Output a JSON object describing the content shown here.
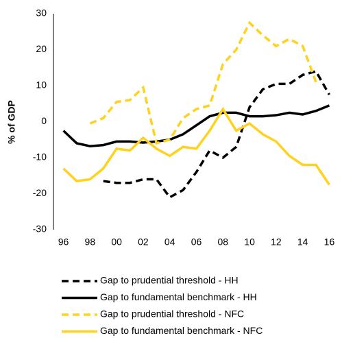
{
  "chart_data": {
    "type": "line",
    "y_label": "% of GDP",
    "x": [
      1996,
      1997,
      1998,
      1999,
      2000,
      2001,
      2002,
      2003,
      2004,
      2005,
      2006,
      2007,
      2008,
      2009,
      2010,
      2011,
      2012,
      2013,
      2014,
      2015,
      2016
    ],
    "xlim": [
      1995.25,
      2016.75
    ],
    "xticks": [
      {
        "value": 1996,
        "label": "96"
      },
      {
        "value": 1998,
        "label": "98"
      },
      {
        "value": 2000,
        "label": "00"
      },
      {
        "value": 2002,
        "label": "02"
      },
      {
        "value": 2004,
        "label": "04"
      },
      {
        "value": 2006,
        "label": "06"
      },
      {
        "value": 2008,
        "label": "08"
      },
      {
        "value": 2010,
        "label": "10"
      },
      {
        "value": 2012,
        "label": "12"
      },
      {
        "value": 2014,
        "label": "14"
      },
      {
        "value": 2016,
        "label": "16"
      }
    ],
    "ylim": [
      -30,
      30
    ],
    "yticks": [
      -30,
      -20,
      -10,
      0,
      10,
      20,
      30
    ],
    "grid": false,
    "series": [
      {
        "name": "Gap to prudential threshold - HH",
        "color": "#000000",
        "dashed": true,
        "values": [
          null,
          null,
          null,
          -16.5,
          -17,
          -17,
          -16,
          -16,
          -21,
          -19,
          -14,
          -8,
          -10,
          -7,
          4,
          9,
          10.5,
          10.5,
          13,
          14,
          7.5
        ]
      },
      {
        "name": "Gap to fundamental benchmark - HH",
        "color": "#000000",
        "dashed": false,
        "values": [
          -2.5,
          -6,
          -6.8,
          -6.5,
          -5.5,
          -5.5,
          -5.8,
          -5.5,
          -5,
          -3.5,
          -1,
          1.5,
          2.5,
          2.5,
          1.5,
          1.5,
          1.8,
          2.5,
          2,
          3,
          4.5
        ]
      },
      {
        "name": "Gap to prudential threshold - NFC",
        "color": "#ffd21f",
        "dashed": true,
        "values": [
          null,
          null,
          -0.5,
          1,
          5.5,
          6,
          9.5,
          -6,
          -5,
          1,
          3.5,
          4.5,
          16,
          20,
          27.5,
          24,
          21,
          23,
          21,
          11,
          null
        ]
      },
      {
        "name": "Gap to fundamental benchmark - NFC",
        "color": "#ffd21f",
        "dashed": false,
        "values": [
          -13,
          -16.5,
          -16,
          -13,
          -7.5,
          -8,
          -4.5,
          -7.5,
          -9.5,
          -7,
          -7.5,
          -2.5,
          3.5,
          -2.5,
          -0.5,
          -3.5,
          -5.5,
          -9.5,
          -12,
          -12,
          -17.5
        ]
      }
    ]
  }
}
